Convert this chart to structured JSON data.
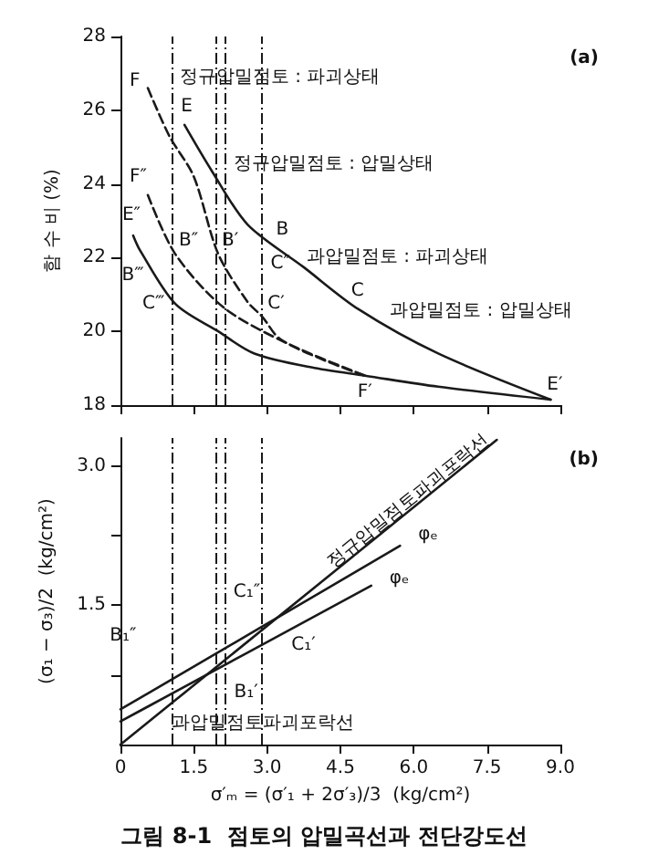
{
  "chart_data": [
    {
      "type": "line",
      "title": "(a)",
      "ylabel": "함 수 비 (%)",
      "xlim": [
        0,
        9
      ],
      "xticks": [
        {
          "value": 0,
          "label": null
        },
        {
          "value": 1.5,
          "label": null
        },
        {
          "value": 3,
          "label": null
        },
        {
          "value": 4.5,
          "label": null
        },
        {
          "value": 6,
          "label": null
        },
        {
          "value": 7.5,
          "label": null
        },
        {
          "value": 9,
          "label": null
        }
      ],
      "ylim": [
        18,
        28
      ],
      "yticks": [
        18,
        20,
        22,
        24,
        26,
        28
      ],
      "tick_labels": "y",
      "grid": false,
      "marker": "none",
      "series": [
        {
          "color": "#1a1a1a",
          "line_style": "solid",
          "x": [
            1.31,
            1.87,
            2.6,
            3.75,
            4.87,
            6.5,
            8.8
          ],
          "values": [
            25.6,
            24.35,
            22.9,
            21.74,
            20.6,
            19.4,
            18.15
          ]
        },
        {
          "color": "#1a1a1a",
          "line_style": "dashed",
          "x": [
            0.56,
            1.0,
            1.5,
            2.0,
            2.6,
            2.9,
            3.26,
            4.2,
            5.0
          ],
          "values": [
            26.6,
            25.3,
            24.2,
            22.1,
            20.8,
            20.4,
            19.8,
            19.2,
            18.8
          ]
        },
        {
          "color": "#1a1a1a",
          "line_style": "dashed",
          "x": [
            0.56,
            1.12,
            2.1,
            3.37,
            5.0
          ],
          "values": [
            23.7,
            22.1,
            20.66,
            19.7,
            18.8
          ]
        },
        {
          "color": "#1a1a1a",
          "line_style": "solid",
          "x": [
            0.26,
            0.4,
            1.12,
            2.0,
            2.74,
            4.0,
            5.0,
            6.5,
            8.8
          ],
          "values": [
            22.6,
            22.2,
            20.75,
            20.0,
            19.4,
            19.0,
            18.8,
            18.5,
            18.15
          ]
        }
      ],
      "ref_lines": [
        {
          "axis": "x",
          "value": 1.05,
          "line_style": "dashed",
          "color": "#1a1a1a"
        },
        {
          "axis": "x",
          "value": 1.95,
          "line_style": "dashed",
          "color": "#1a1a1a"
        },
        {
          "axis": "x",
          "value": 2.13,
          "line_style": "dashed",
          "color": "#1a1a1a"
        },
        {
          "axis": "x",
          "value": 2.9,
          "line_style": "dashed",
          "color": "#1a1a1a"
        }
      ],
      "annotations": [
        {
          "text": "F",
          "x": 0.56,
          "y": 26.6
        },
        {
          "text": "정규압밀점토 : 파괴상태",
          "x": 1.1,
          "y": 26.6
        },
        {
          "text": "E",
          "x": 1.31,
          "y": 25.6
        },
        {
          "text": "정규압밀점토 : 압밀상태",
          "x": 2.2,
          "y": 24.2
        },
        {
          "text": "F″",
          "x": 0.56,
          "y": 23.7
        },
        {
          "text": "E″",
          "x": 0.26,
          "y": 22.6
        },
        {
          "text": "B″",
          "x": 1.12,
          "y": 22.1
        },
        {
          "text": "B′",
          "x": 2.0,
          "y": 22.1
        },
        {
          "text": "B",
          "x": 3.07,
          "y": 22.4
        },
        {
          "text": "B‴",
          "x": 0.4,
          "y": 22.2
        },
        "과압밀점토 : 파괴상태",
        {
          "text": "C″",
          "x": 2.96,
          "y": 21.5
        },
        {
          "text": "C‴",
          "x": 1.12,
          "y": 20.75
        },
        {
          "text": "C′",
          "x": 2.9,
          "y": 20.4
        },
        {
          "text": "C",
          "x": 4.87,
          "y": 20.6
        },
        {
          "text": "과압밀점토 : 압밀상태",
          "x": 5.4,
          "y": 20.2
        },
        {
          "text": "F′",
          "x": 5.0,
          "y": 18.8
        },
        {
          "text": "E′",
          "x": 8.8,
          "y": 18.15
        }
      ]
    },
    {
      "type": "line",
      "title": "(b)",
      "xlabel": "σ′ₘ = (σ′₁ + 2σ′₃)/3  (kg/cm²)",
      "ylabel": "(σ₁ − σ₃)/2  (kg/cm²)",
      "xlim": [
        0,
        9
      ],
      "xticks": [
        0,
        1.5,
        {
          "value": 3,
          "label": "3.0"
        },
        4.5,
        {
          "value": 6,
          "label": "6.0"
        },
        7.5,
        {
          "value": 9,
          "label": "9.0"
        }
      ],
      "ylim": [
        0,
        3.3
      ],
      "yticks": [
        {
          "value": 0.75,
          "label": null
        },
        1.5,
        {
          "value": 2.25,
          "label": null
        },
        {
          "value": 3,
          "label": "3.0"
        }
      ],
      "grid": false,
      "marker": "none",
      "series": [
        {
          "color": "#1a1a1a",
          "line_style": "solid",
          "x": [
            0,
            1.95,
            7.7
          ],
          "values": [
            0,
            0.83,
            3.28
          ]
        },
        {
          "color": "#1a1a1a",
          "line_style": "solid",
          "x": [
            0,
            1.05,
            2.9,
            5.72
          ],
          "values": [
            0.38,
            0.7,
            1.27,
            2.14
          ]
        },
        {
          "color": "#1a1a1a",
          "line_style": "solid",
          "x": [
            0,
            0.6,
            5.13
          ],
          "values": [
            0.25,
            0.42,
            1.71
          ]
        }
      ],
      "ref_lines": [
        {
          "axis": "x",
          "value": 1.05,
          "line_style": "dashed",
          "color": "#1a1a1a"
        },
        {
          "axis": "x",
          "value": 1.95,
          "line_style": "dashed",
          "color": "#1a1a1a"
        },
        {
          "axis": "x",
          "value": 2.13,
          "line_style": "dashed",
          "color": "#1a1a1a"
        },
        {
          "axis": "x",
          "value": 2.9,
          "line_style": "dashed",
          "color": "#1a1a1a"
        }
      ],
      "annotations": [
        {
          "text": "정규압밀점토파괴포락선",
          "x": 7.7,
          "y": 3.28
        },
        {
          "text": "φₑ",
          "x": 5.72,
          "y": 2.14
        },
        {
          "text": "φₑ",
          "x": 5.13,
          "y": 1.71
        },
        {
          "text": "C₁″",
          "x": 2.2,
          "y": 1.5
        },
        {
          "text": "C₁′",
          "x": 2.9,
          "y": 1.27
        },
        {
          "text": "B₁″",
          "x": 1.05,
          "y": 0.7
        },
        {
          "text": "B₁′",
          "x": 1.95,
          "y": 0.83
        },
        {
          "text": "과압밀점토파괴포락선",
          "x": 0.6,
          "y": 0.42
        },
        "그림 8-1  점토의 압밀곡선과 전단강도선"
      ]
    }
  ]
}
